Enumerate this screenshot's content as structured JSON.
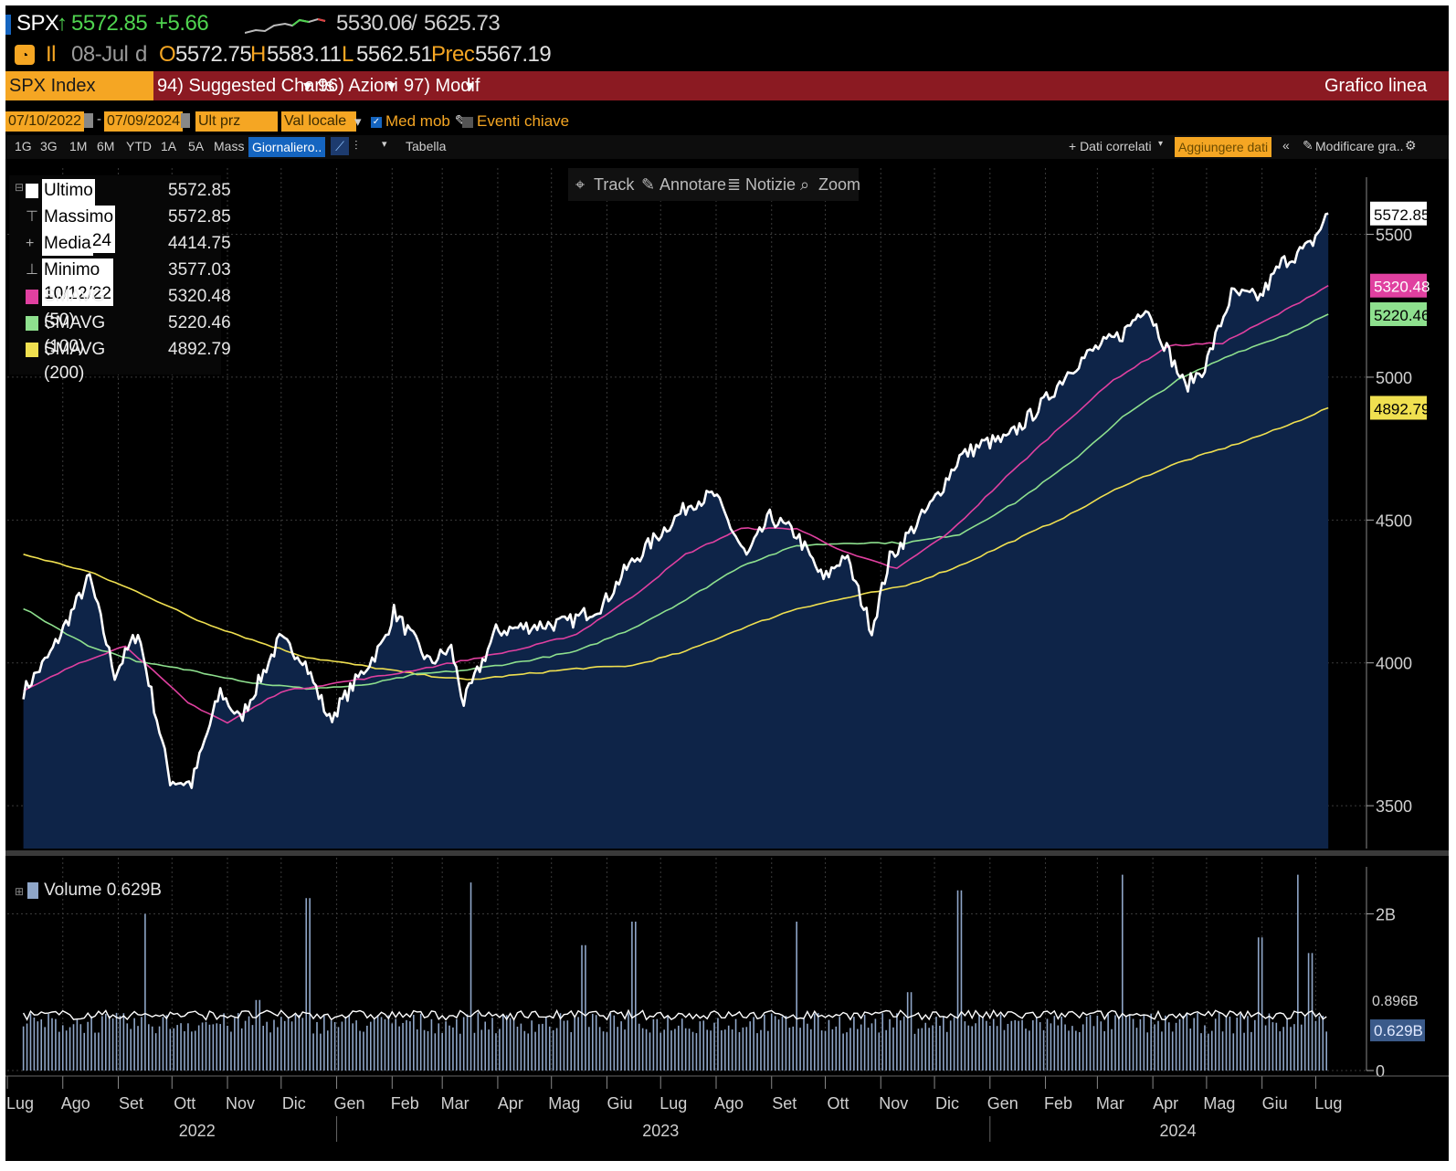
{
  "quote": {
    "ticker": "SPX",
    "arrow": "↑",
    "last": "5572.85",
    "change": "+5.66",
    "range_low": "5530.06",
    "range_sep": "/",
    "range_high": "5625.73",
    "il": "Il",
    "date": "08-Jul",
    "date_suffix": "d",
    "o_label": "O",
    "o_value": "5572.75",
    "h_label": "H",
    "h_value": "5583.11",
    "l_label": "L",
    "l_value": "5562.51",
    "prec_label": "Prec",
    "prec_value": "5567.19"
  },
  "menu": {
    "index": "SPX Index",
    "suggested": "94) Suggested Charts",
    "azioni": "96) Azioni",
    "modif": "97) Modif",
    "chart_type": "Grafico linea"
  },
  "params": {
    "start_date": "07/10/2022",
    "dash": "-",
    "end_date": "07/09/2024",
    "ult_prz": "Ult prz",
    "val_locale": "Val locale",
    "med_mob": "Med mob",
    "eventi": "Eventi chiave"
  },
  "toolbar": {
    "periods": [
      "1G",
      "3G",
      "1M",
      "6M",
      "YTD",
      "1A",
      "5A",
      "Mass"
    ],
    "frequency": "Giornaliero..",
    "tabella": "Tabella",
    "dati_correlati": "+ Dati correlati",
    "aggiungere": "Aggiungere dati",
    "modificare": "Modificare gra..",
    "tools": [
      "Track",
      "Annotare",
      "Notizie",
      "Zoom"
    ]
  },
  "legend": [
    {
      "label": "Ultimo prz",
      "value": "5572.85",
      "color": "#ffffff"
    },
    {
      "label": "Massimo 07/08/24",
      "value": "5572.85",
      "color": null
    },
    {
      "label": "Media",
      "value": "4414.75",
      "color": null
    },
    {
      "label": "Minimo 10/12/22",
      "value": "3577.03",
      "color": null
    },
    {
      "label": "SMAVG (50)",
      "value": "5320.48",
      "color": "#e040a0"
    },
    {
      "label": "SMAVG (100)",
      "value": "5220.46",
      "color": "#8ee08e"
    },
    {
      "label": "SMAVG (200)",
      "value": "4892.79",
      "color": "#f0e050"
    }
  ],
  "volume_legend": "Volume 0.629B",
  "chart_data": [
    {
      "type": "line",
      "x_format": "YYYY-MM",
      "ylim": [
        3350,
        5700
      ],
      "yticks": [
        3500,
        4000,
        4500,
        5000,
        5500
      ],
      "x_month_labels": [
        "Lug",
        "Ago",
        "Set",
        "Ott",
        "Nov",
        "Dic",
        "Gen",
        "Feb",
        "Mar",
        "Apr",
        "Mag",
        "Giu",
        "Lug",
        "Ago",
        "Set",
        "Ott",
        "Nov",
        "Dic",
        "Gen",
        "Feb",
        "Mar",
        "Apr",
        "Mag",
        "Giu",
        "Lug"
      ],
      "x_year_labels": [
        "2022",
        "2023",
        "2024"
      ],
      "series": [
        {
          "name": "Ultimo prz",
          "color": "#ffffff",
          "points": [
            [
              "2022-07-10",
              3900
            ],
            [
              "2022-07-25",
              4030
            ],
            [
              "2022-08-16",
              4300
            ],
            [
              "2022-08-30",
              3960
            ],
            [
              "2022-09-12",
              4110
            ],
            [
              "2022-09-30",
              3590
            ],
            [
              "2022-10-12",
              3577
            ],
            [
              "2022-10-28",
              3900
            ],
            [
              "2022-11-08",
              3800
            ],
            [
              "2022-11-30",
              4080
            ],
            [
              "2022-12-13",
              4020
            ],
            [
              "2022-12-28",
              3800
            ],
            [
              "2023-01-10",
              3920
            ],
            [
              "2023-01-27",
              4070
            ],
            [
              "2023-02-02",
              4180
            ],
            [
              "2023-02-22",
              4000
            ],
            [
              "2023-03-06",
              4050
            ],
            [
              "2023-03-13",
              3860
            ],
            [
              "2023-03-31",
              4110
            ],
            [
              "2023-04-20",
              4130
            ],
            [
              "2023-05-10",
              4140
            ],
            [
              "2023-05-30",
              4205
            ],
            [
              "2023-06-12",
              4330
            ],
            [
              "2023-06-30",
              4450
            ],
            [
              "2023-07-18",
              4560
            ],
            [
              "2023-07-31",
              4588
            ],
            [
              "2023-08-18",
              4370
            ],
            [
              "2023-08-31",
              4510
            ],
            [
              "2023-09-15",
              4450
            ],
            [
              "2023-09-30",
              4290
            ],
            [
              "2023-10-12",
              4380
            ],
            [
              "2023-10-27",
              4117
            ],
            [
              "2023-11-06",
              4365
            ],
            [
              "2023-11-30",
              4560
            ],
            [
              "2023-12-15",
              4720
            ],
            [
              "2023-12-29",
              4770
            ],
            [
              "2024-01-10",
              4780
            ],
            [
              "2024-01-31",
              4910
            ],
            [
              "2024-02-15",
              5030
            ],
            [
              "2024-02-29",
              5100
            ],
            [
              "2024-03-15",
              5150
            ],
            [
              "2024-03-28",
              5254
            ],
            [
              "2024-04-19",
              4967
            ],
            [
              "2024-04-30",
              5036
            ],
            [
              "2024-05-15",
              5290
            ],
            [
              "2024-05-31",
              5280
            ],
            [
              "2024-06-12",
              5400
            ],
            [
              "2024-06-28",
              5460
            ],
            [
              "2024-07-08",
              5572.85
            ]
          ]
        },
        {
          "name": "SMAVG (50)",
          "color": "#e040a0",
          "points": [
            [
              "2022-07-10",
              3900
            ],
            [
              "2022-08-10",
              4000
            ],
            [
              "2022-09-05",
              4060
            ],
            [
              "2022-10-10",
              3860
            ],
            [
              "2022-11-01",
              3790
            ],
            [
              "2022-12-01",
              3900
            ],
            [
              "2023-01-01",
              3930
            ],
            [
              "2023-02-01",
              3960
            ],
            [
              "2023-03-15",
              4010
            ],
            [
              "2023-04-15",
              4050
            ],
            [
              "2023-05-15",
              4100
            ],
            [
              "2023-06-15",
              4230
            ],
            [
              "2023-07-15",
              4380
            ],
            [
              "2023-08-15",
              4470
            ],
            [
              "2023-09-15",
              4470
            ],
            [
              "2023-10-15",
              4380
            ],
            [
              "2023-11-10",
              4330
            ],
            [
              "2023-12-10",
              4460
            ],
            [
              "2024-01-10",
              4650
            ],
            [
              "2024-02-10",
              4830
            ],
            [
              "2024-03-10",
              4990
            ],
            [
              "2024-04-10",
              5110
            ],
            [
              "2024-05-10",
              5120
            ],
            [
              "2024-06-10",
              5220
            ],
            [
              "2024-07-08",
              5320.48
            ]
          ]
        },
        {
          "name": "SMAVG (100)",
          "color": "#8ee08e",
          "points": [
            [
              "2022-07-10",
              4190
            ],
            [
              "2022-08-15",
              4060
            ],
            [
              "2022-09-15",
              4000
            ],
            [
              "2022-10-15",
              3970
            ],
            [
              "2022-11-15",
              3930
            ],
            [
              "2022-12-15",
              3910
            ],
            [
              "2023-01-15",
              3920
            ],
            [
              "2023-02-15",
              3960
            ],
            [
              "2023-03-15",
              3975
            ],
            [
              "2023-04-15",
              4005
            ],
            [
              "2023-05-15",
              4040
            ],
            [
              "2023-06-15",
              4120
            ],
            [
              "2023-07-15",
              4220
            ],
            [
              "2023-08-15",
              4340
            ],
            [
              "2023-09-15",
              4410
            ],
            [
              "2023-10-15",
              4420
            ],
            [
              "2023-11-15",
              4420
            ],
            [
              "2023-12-15",
              4450
            ],
            [
              "2024-01-15",
              4560
            ],
            [
              "2024-02-15",
              4700
            ],
            [
              "2024-03-15",
              4860
            ],
            [
              "2024-04-15",
              4990
            ],
            [
              "2024-05-15",
              5080
            ],
            [
              "2024-06-15",
              5150
            ],
            [
              "2024-07-08",
              5220.46
            ]
          ]
        },
        {
          "name": "SMAVG (200)",
          "color": "#f0e050",
          "points": [
            [
              "2022-07-10",
              4380
            ],
            [
              "2022-08-15",
              4320
            ],
            [
              "2022-09-15",
              4240
            ],
            [
              "2022-10-15",
              4150
            ],
            [
              "2022-11-15",
              4080
            ],
            [
              "2022-12-15",
              4020
            ],
            [
              "2023-01-15",
              3990
            ],
            [
              "2023-02-15",
              3960
            ],
            [
              "2023-03-15",
              3940
            ],
            [
              "2023-04-15",
              3960
            ],
            [
              "2023-05-15",
              3980
            ],
            [
              "2023-06-15",
              3990
            ],
            [
              "2023-07-15",
              4040
            ],
            [
              "2023-08-15",
              4120
            ],
            [
              "2023-09-15",
              4190
            ],
            [
              "2023-10-15",
              4230
            ],
            [
              "2023-11-15",
              4270
            ],
            [
              "2023-12-15",
              4340
            ],
            [
              "2024-01-15",
              4430
            ],
            [
              "2024-02-15",
              4520
            ],
            [
              "2024-03-15",
              4620
            ],
            [
              "2024-04-15",
              4700
            ],
            [
              "2024-05-15",
              4760
            ],
            [
              "2024-06-15",
              4830
            ],
            [
              "2024-07-08",
              4892.79
            ]
          ]
        }
      ],
      "labels": [
        {
          "text": "5572.85",
          "value": 5572.85,
          "bg": "#ffffff",
          "fg": "#000000"
        },
        {
          "text": "5320.48",
          "value": 5320.48,
          "bg": "#e040a0",
          "fg": "#ffffff"
        },
        {
          "text": "5220.46",
          "value": 5220.46,
          "bg": "#8ee08e",
          "fg": "#000000"
        },
        {
          "text": "4892.79",
          "value": 4892.79,
          "bg": "#f0e050",
          "fg": "#000000"
        }
      ]
    },
    {
      "type": "bar",
      "name": "Volume",
      "unit": "B",
      "ylim": [
        0,
        2.6
      ],
      "yticks": [
        {
          "value": 0,
          "text": "0"
        },
        {
          "value": 2,
          "text": "2B"
        }
      ],
      "base_level": 0.6,
      "average_level": 0.896,
      "average_text": "0.896B",
      "last_value": 0.629,
      "last_text": "0.629B",
      "spikes": [
        [
          "2022-09-16",
          2.0
        ],
        [
          "2022-11-18",
          0.9
        ],
        [
          "2022-12-16",
          2.2
        ],
        [
          "2023-03-17",
          2.4
        ],
        [
          "2023-06-16",
          1.9
        ],
        [
          "2023-05-19",
          1.6
        ],
        [
          "2023-09-15",
          1.9
        ],
        [
          "2023-12-15",
          2.3
        ],
        [
          "2023-11-17",
          1.0
        ],
        [
          "2024-03-15",
          2.5
        ],
        [
          "2024-06-21",
          2.5
        ],
        [
          "2024-05-31",
          1.7
        ],
        [
          "2024-06-28",
          1.5
        ]
      ]
    }
  ]
}
